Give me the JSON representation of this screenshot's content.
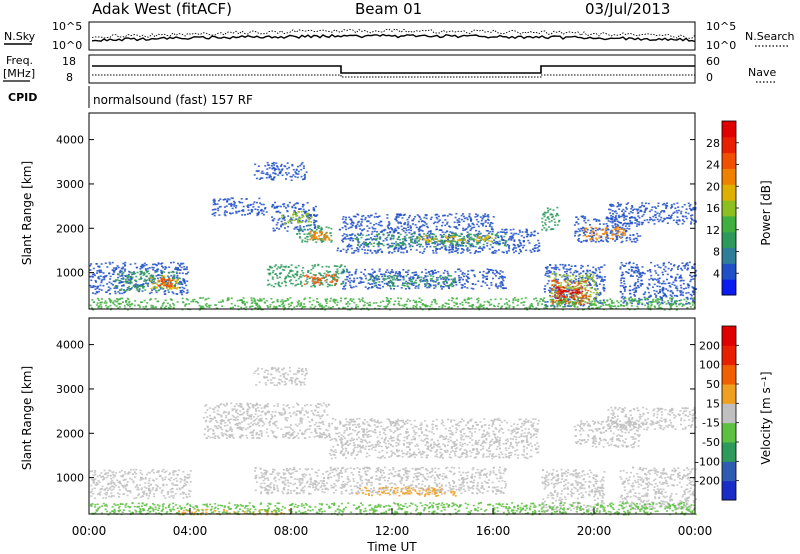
{
  "header": {
    "site": "Adak West (fitACF)",
    "beam": "Beam 01",
    "date": "03/Jul/2013"
  },
  "top_panels": {
    "nsky_label": "N.Sky",
    "nsky_ticks": [
      "10^5",
      "10^0"
    ],
    "nsearch_label": "N.Search",
    "nsearch_ticks": [
      "10^5",
      "10^0"
    ],
    "freq_label": "Freq.",
    "freq_unit": "[MHz]",
    "freq_ticks": [
      "18",
      "8"
    ],
    "nave_label": "Nave",
    "nave_ticks": [
      "60",
      "0"
    ],
    "cpid_label": "CPID",
    "cpid_text": "normalsound (fast) 157 RF"
  },
  "chart_data": [
    {
      "type": "heatmap",
      "name": "power",
      "ylabel": "Slant Range [km]",
      "yticks": [
        "1000",
        "2000",
        "3000",
        "4000"
      ],
      "ylim": [
        180,
        4600
      ],
      "xlim": [
        0,
        24
      ],
      "colorbar_label": "Power [dB]",
      "colorbar_ticks": [
        "4",
        "8",
        "12",
        "16",
        "20",
        "24",
        "28"
      ],
      "colorbar_colors": [
        "#0a1cf0",
        "#2050c8",
        "#2e7e9a",
        "#2e9a5a",
        "#3fb03f",
        "#8cc020",
        "#e0b000",
        "#f08000",
        "#f05000",
        "#e82000",
        "#e00000"
      ]
    },
    {
      "type": "heatmap",
      "name": "velocity",
      "ylabel": "Slant Range [km]",
      "yticks": [
        "1000",
        "2000",
        "3000",
        "4000"
      ],
      "ylim": [
        180,
        4600
      ],
      "xlim": [
        0,
        24
      ],
      "xticks": [
        "00:00",
        "04:00",
        "08:00",
        "12:00",
        "16:00",
        "20:00",
        "00:00"
      ],
      "xlabel": "Time UT",
      "colorbar_label": "Velocity [m s⁻¹]",
      "colorbar_ticks": [
        "200",
        "100",
        "50",
        "15",
        "-15",
        "-50",
        "-100",
        "-200"
      ],
      "colorbar_colors": [
        "#1a2cc8",
        "#2e5cb0",
        "#2e9a5a",
        "#5cc040",
        "#c0c0c0",
        "#f0a020",
        "#f06000",
        "#e82000",
        "#e00000"
      ]
    }
  ],
  "scatter": {
    "power_patches": [
      {
        "t0": 0.0,
        "t1": 3.9,
        "r0": 520,
        "r1": 1250,
        "c": "#2050c8"
      },
      {
        "t0": 1.0,
        "t1": 3.6,
        "r0": 600,
        "r1": 1050,
        "c": "#2e9a5a"
      },
      {
        "t0": 2.4,
        "t1": 3.5,
        "r0": 650,
        "r1": 950,
        "c": "#e0b000"
      },
      {
        "t0": 2.7,
        "t1": 3.3,
        "r0": 700,
        "r1": 880,
        "c": "#f05000"
      },
      {
        "t0": 4.8,
        "t1": 7.0,
        "r0": 2300,
        "r1": 2700,
        "c": "#2050c8"
      },
      {
        "t0": 7.2,
        "t1": 9.0,
        "r0": 1950,
        "r1": 2600,
        "c": "#2050c8"
      },
      {
        "t0": 7.6,
        "t1": 8.8,
        "r0": 2100,
        "r1": 2400,
        "c": "#8cc020"
      },
      {
        "t0": 8.2,
        "t1": 9.6,
        "r0": 1700,
        "r1": 2100,
        "c": "#2e9a5a"
      },
      {
        "t0": 8.7,
        "t1": 9.5,
        "r0": 1750,
        "r1": 1950,
        "c": "#f08000"
      },
      {
        "t0": 7.0,
        "t1": 10.2,
        "r0": 700,
        "r1": 1200,
        "c": "#2e9a5a"
      },
      {
        "t0": 8.5,
        "t1": 9.8,
        "r0": 750,
        "r1": 1000,
        "c": "#f05000"
      },
      {
        "t0": 9.8,
        "t1": 17.8,
        "r0": 1450,
        "r1": 2000,
        "c": "#2050c8"
      },
      {
        "t0": 10.5,
        "t1": 16.5,
        "r0": 1600,
        "r1": 1900,
        "c": "#2e9a5a"
      },
      {
        "t0": 13.0,
        "t1": 16.0,
        "r0": 1700,
        "r1": 1850,
        "c": "#e0b000"
      },
      {
        "t0": 10.0,
        "t1": 16.0,
        "r0": 2000,
        "r1": 2350,
        "c": "#2050c8"
      },
      {
        "t0": 6.5,
        "t1": 8.6,
        "r0": 3100,
        "r1": 3500,
        "c": "#2050c8"
      },
      {
        "t0": 10.0,
        "t1": 16.5,
        "r0": 650,
        "r1": 1100,
        "c": "#2050c8"
      },
      {
        "t0": 11.0,
        "t1": 14.5,
        "r0": 700,
        "r1": 950,
        "c": "#2e9a5a"
      },
      {
        "t0": 17.9,
        "t1": 18.6,
        "r0": 1950,
        "r1": 2500,
        "c": "#2e9a5a"
      },
      {
        "t0": 18.0,
        "t1": 20.4,
        "r0": 250,
        "r1": 1200,
        "c": "#2050c8"
      },
      {
        "t0": 18.2,
        "t1": 20.1,
        "r0": 300,
        "r1": 1000,
        "c": "#8cc020"
      },
      {
        "t0": 18.3,
        "t1": 19.8,
        "r0": 300,
        "r1": 850,
        "c": "#f05000"
      },
      {
        "t0": 18.5,
        "t1": 19.5,
        "r0": 350,
        "r1": 700,
        "c": "#e00000"
      },
      {
        "t0": 19.2,
        "t1": 21.8,
        "r0": 1700,
        "r1": 2300,
        "c": "#2050c8"
      },
      {
        "t0": 19.5,
        "t1": 21.2,
        "r0": 1750,
        "r1": 2050,
        "c": "#f08000"
      },
      {
        "t0": 21.0,
        "t1": 24.0,
        "r0": 300,
        "r1": 1250,
        "c": "#2050c8"
      },
      {
        "t0": 20.5,
        "t1": 24.0,
        "r0": 2100,
        "r1": 2600,
        "c": "#2050c8"
      },
      {
        "t0": 0.0,
        "t1": 24.0,
        "r0": 180,
        "r1": 450,
        "c": "#3fb03f"
      }
    ],
    "velocity_patches": [
      {
        "t0": 0.0,
        "t1": 4.0,
        "r0": 550,
        "r1": 1200,
        "c": "#c0c0c0"
      },
      {
        "t0": 4.5,
        "t1": 9.5,
        "r0": 1900,
        "r1": 2700,
        "c": "#c0c0c0"
      },
      {
        "t0": 6.5,
        "t1": 8.6,
        "r0": 3100,
        "r1": 3500,
        "c": "#c0c0c0"
      },
      {
        "t0": 9.5,
        "t1": 17.8,
        "r0": 1450,
        "r1": 2350,
        "c": "#c0c0c0"
      },
      {
        "t0": 6.5,
        "t1": 16.5,
        "r0": 650,
        "r1": 1250,
        "c": "#c0c0c0"
      },
      {
        "t0": 10.5,
        "t1": 14.5,
        "r0": 600,
        "r1": 800,
        "c": "#f0a020"
      },
      {
        "t0": 3.5,
        "t1": 8.0,
        "r0": 180,
        "r1": 300,
        "c": "#f0a020"
      },
      {
        "t0": 17.9,
        "t1": 20.4,
        "r0": 250,
        "r1": 1200,
        "c": "#c0c0c0"
      },
      {
        "t0": 19.2,
        "t1": 21.8,
        "r0": 1700,
        "r1": 2300,
        "c": "#c0c0c0"
      },
      {
        "t0": 21.0,
        "t1": 24.0,
        "r0": 300,
        "r1": 1250,
        "c": "#c0c0c0"
      },
      {
        "t0": 20.5,
        "t1": 24.0,
        "r0": 2100,
        "r1": 2600,
        "c": "#c0c0c0"
      },
      {
        "t0": 0.0,
        "t1": 24.0,
        "r0": 180,
        "r1": 450,
        "c": "#5cc040"
      }
    ]
  }
}
